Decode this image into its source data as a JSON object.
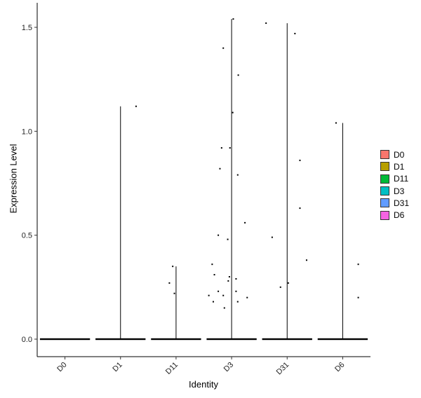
{
  "chart_data": {
    "type": "violin",
    "xlabel": "Identity",
    "ylabel": "Expression Level",
    "categories": [
      "D0",
      "D1",
      "D11",
      "D3",
      "D31",
      "D6"
    ],
    "yticks": [
      "0.0",
      "0.5",
      "1.0",
      "1.5"
    ],
    "ylim": [
      -0.08,
      1.6
    ],
    "legend": {
      "position": "right",
      "items": [
        {
          "label": "D0",
          "color": "#F8766D"
        },
        {
          "label": "D1",
          "color": "#B79F00"
        },
        {
          "label": "D11",
          "color": "#00BA38"
        },
        {
          "label": "D3",
          "color": "#00BFC4"
        },
        {
          "label": "D31",
          "color": "#619CFF"
        },
        {
          "label": "D6",
          "color": "#F564E3"
        }
      ]
    },
    "series": [
      {
        "name": "D0",
        "max": 0.0,
        "points": []
      },
      {
        "name": "D1",
        "max": 1.12,
        "points": [
          [
            0.28,
            1.12
          ]
        ]
      },
      {
        "name": "D11",
        "max": 0.35,
        "points": [
          [
            -0.06,
            0.35
          ],
          [
            -0.12,
            0.27
          ],
          [
            -0.03,
            0.22
          ]
        ]
      },
      {
        "name": "D3",
        "max": 1.54,
        "points": [
          [
            0.03,
            1.54
          ],
          [
            -0.15,
            1.4
          ],
          [
            0.12,
            1.27
          ],
          [
            0.02,
            1.09
          ],
          [
            -0.18,
            0.92
          ],
          [
            -0.03,
            0.92
          ],
          [
            -0.21,
            0.82
          ],
          [
            0.11,
            0.79
          ],
          [
            0.24,
            0.56
          ],
          [
            -0.24,
            0.5
          ],
          [
            -0.07,
            0.48
          ],
          [
            -0.35,
            0.36
          ],
          [
            -0.31,
            0.31
          ],
          [
            -0.04,
            0.3
          ],
          [
            0.08,
            0.29
          ],
          [
            -0.06,
            0.28
          ],
          [
            -0.24,
            0.23
          ],
          [
            0.08,
            0.23
          ],
          [
            -0.41,
            0.21
          ],
          [
            -0.15,
            0.21
          ],
          [
            0.28,
            0.2
          ],
          [
            -0.33,
            0.18
          ],
          [
            0.11,
            0.18
          ],
          [
            -0.13,
            0.15
          ]
        ]
      },
      {
        "name": "D31",
        "max": 1.52,
        "points": [
          [
            -0.38,
            1.52
          ],
          [
            0.14,
            1.47
          ],
          [
            0.23,
            0.86
          ],
          [
            0.23,
            0.63
          ],
          [
            -0.27,
            0.49
          ],
          [
            0.35,
            0.38
          ],
          [
            0.02,
            0.27
          ],
          [
            -0.12,
            0.25
          ]
        ]
      },
      {
        "name": "D6",
        "max": 1.04,
        "points": [
          [
            -0.12,
            1.04
          ],
          [
            0.28,
            0.36
          ],
          [
            0.28,
            0.2
          ]
        ]
      }
    ]
  }
}
